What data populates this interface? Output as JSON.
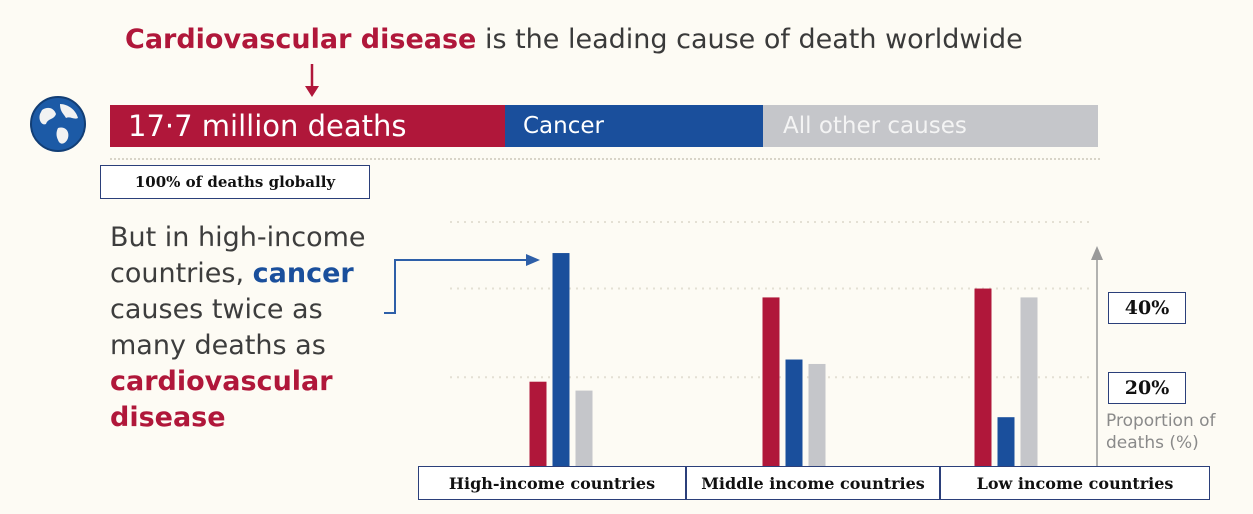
{
  "header": {
    "title_highlight": "Cardiovascular disease",
    "title_rest": " is the leading cause of death worldwide"
  },
  "global_bar": {
    "segments": [
      {
        "label": "17·7 million deaths",
        "color": "#b0173a"
      },
      {
        "label": "Cancer",
        "color": "#1a4f9c"
      },
      {
        "label": "All other causes",
        "color": "#c5c6ca"
      }
    ],
    "caption": "100% of deaths globally"
  },
  "narrative": {
    "line1": "But in high-income countries, ",
    "cancer": "cancer",
    "line2": " causes twice as many deaths as ",
    "cvd": "cardiovascular disease"
  },
  "icons": {
    "globe": "globe-icon",
    "arrow": "down-arrow-icon"
  },
  "chart_data": {
    "type": "bar",
    "categories": [
      "High-income countries",
      "Middle income countries",
      "Low income countries"
    ],
    "series": [
      {
        "name": "Cardiovascular disease",
        "color": "#b0173a",
        "values": [
          19,
          38,
          40
        ]
      },
      {
        "name": "Cancer",
        "color": "#1a4f9c",
        "values": [
          48,
          24,
          11
        ]
      },
      {
        "name": "All other causes",
        "color": "#c5c6ca",
        "values": [
          17,
          23,
          38
        ]
      }
    ],
    "ylabel": "Proportion of deaths (%)",
    "ytick_labels": [
      {
        "value": 40,
        "label": "40%"
      },
      {
        "value": 20,
        "label": "20%"
      }
    ],
    "ylim": [
      0,
      55
    ],
    "grid": true
  }
}
